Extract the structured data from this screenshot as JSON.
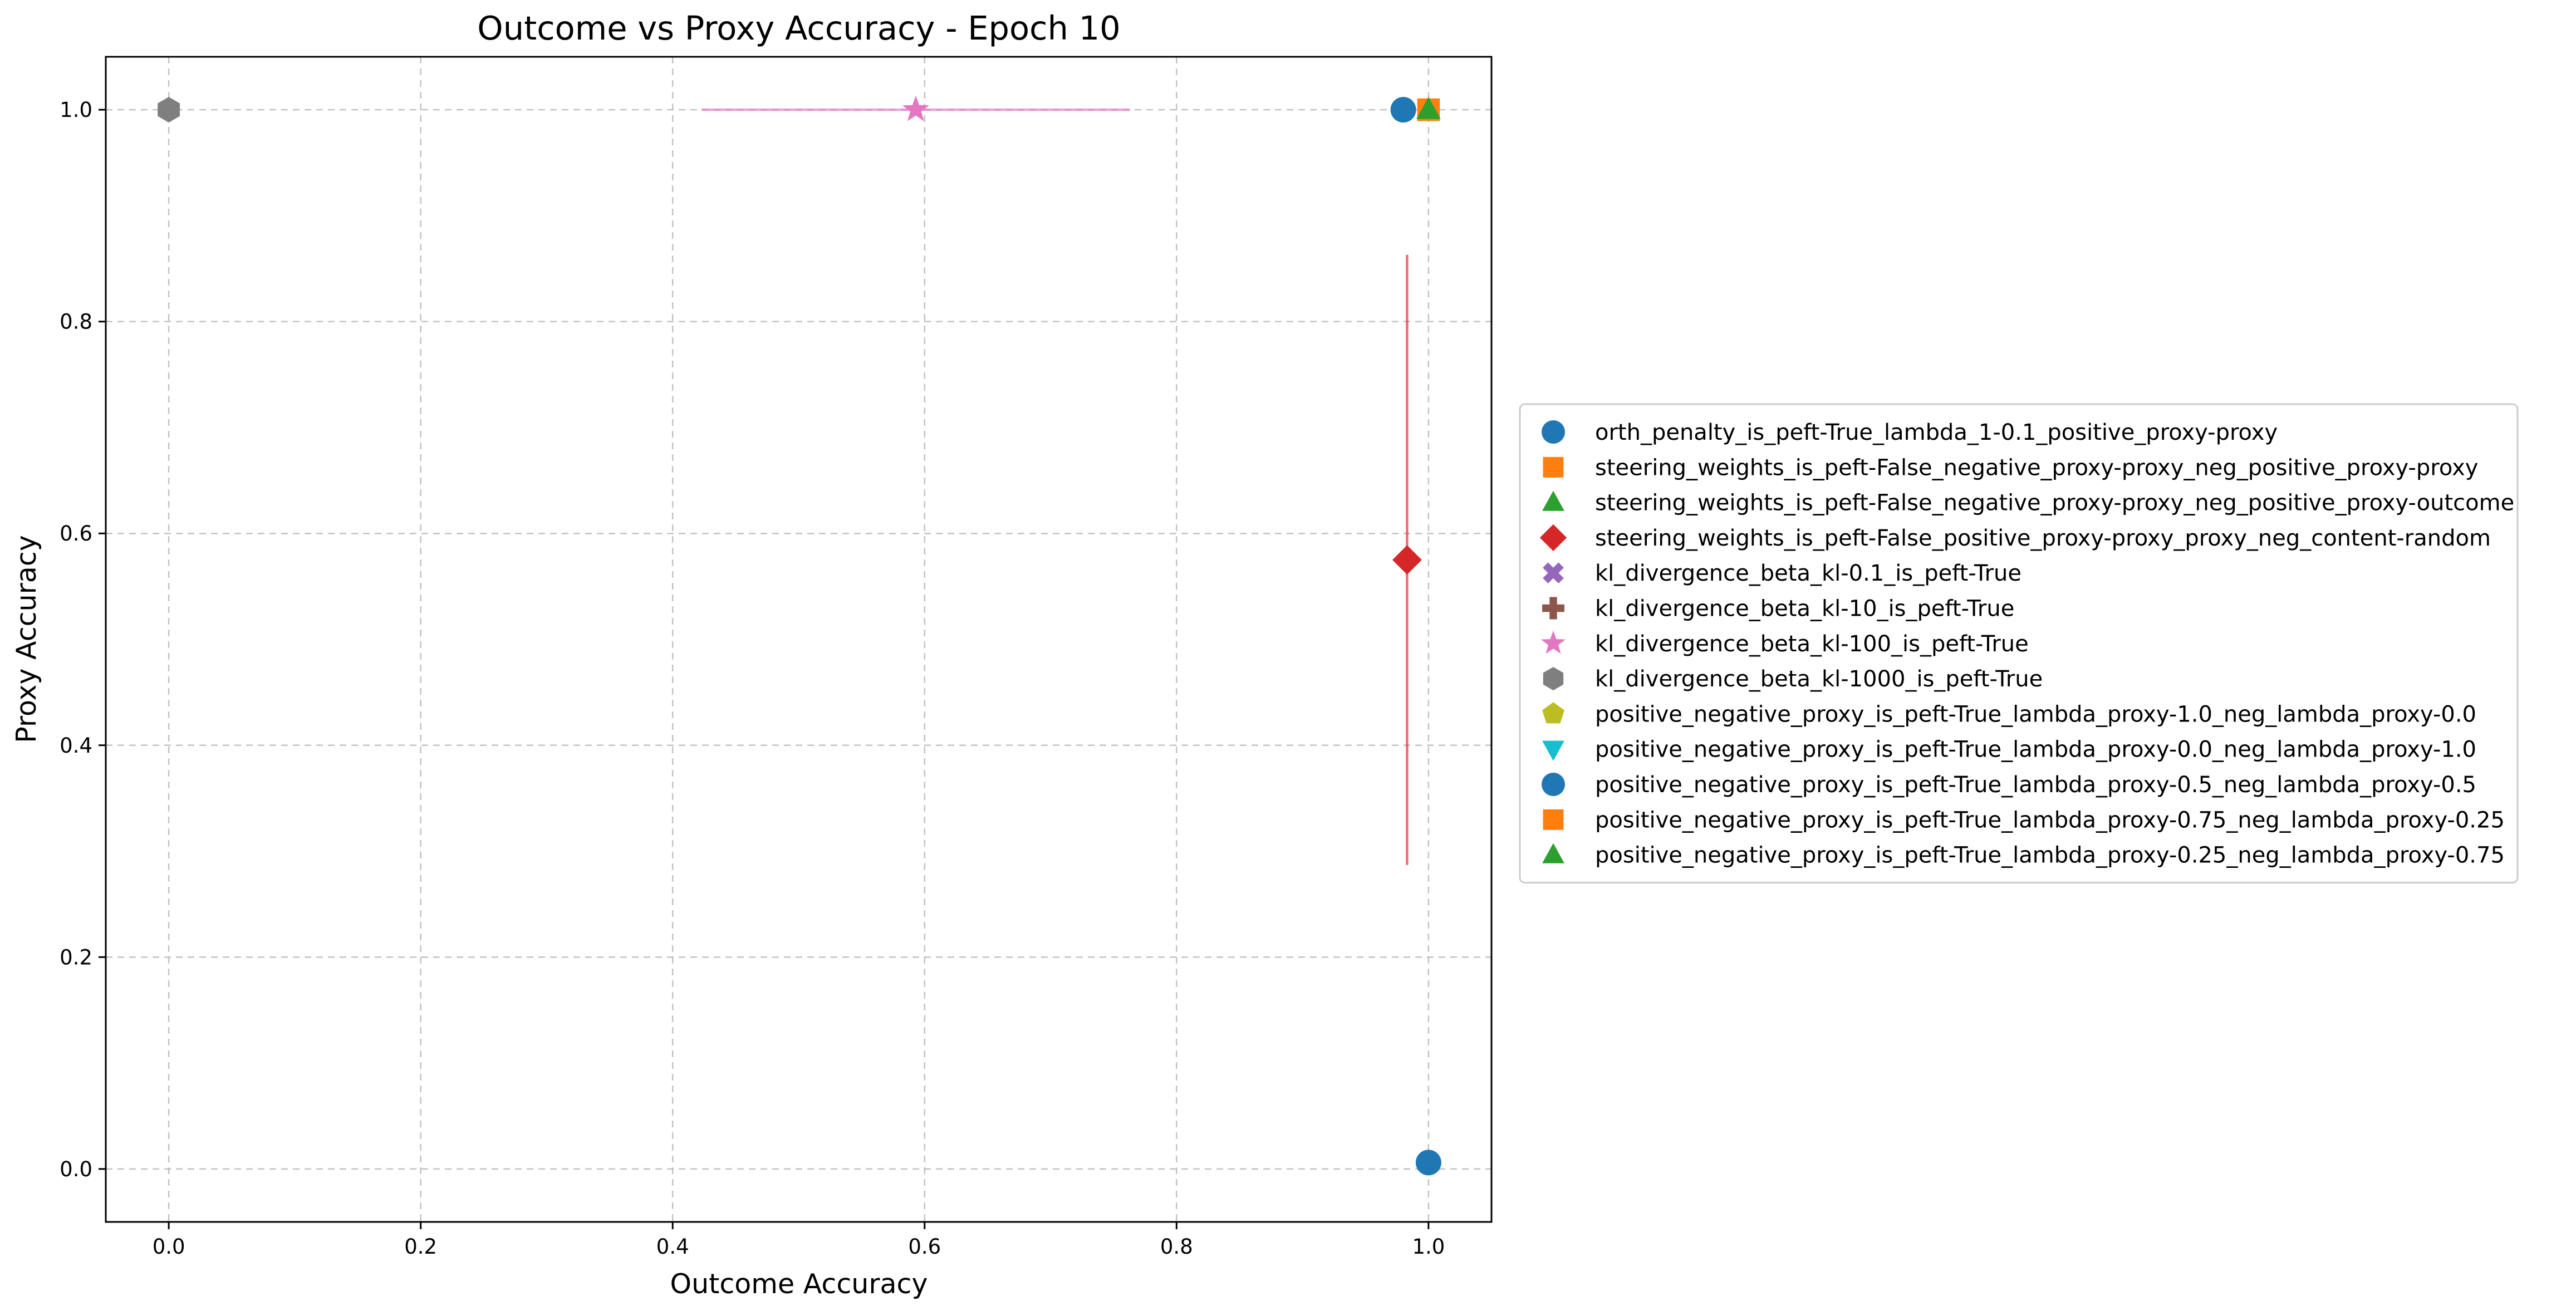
{
  "chart_data": {
    "type": "scatter",
    "title": "Outcome vs Proxy Accuracy - Epoch 10",
    "xlabel": "Outcome Accuracy",
    "ylabel": "Proxy Accuracy",
    "xlim": [
      -0.05,
      1.05
    ],
    "ylim": [
      -0.05,
      1.05
    ],
    "xticks": [
      0.0,
      0.2,
      0.4,
      0.6,
      0.8,
      1.0
    ],
    "yticks": [
      0.0,
      0.2,
      0.4,
      0.6,
      0.8,
      1.0
    ],
    "xtick_labels": [
      "0.0",
      "0.2",
      "0.4",
      "0.6",
      "0.8",
      "1.0"
    ],
    "ytick_labels": [
      "0.0",
      "0.2",
      "0.4",
      "0.6",
      "0.8",
      "1.0"
    ],
    "grid": true,
    "legend_position": "right, outside plot",
    "series": [
      {
        "name": "orth_penalty_is_peft-True_lambda_1-0.1_positive_proxy-proxy",
        "marker": "circle",
        "color": "#1f77b4",
        "points": [
          {
            "x": 0.98,
            "y": 1.0
          }
        ]
      },
      {
        "name": "steering_weights_is_peft-False_negative_proxy-proxy_neg_positive_proxy-proxy",
        "marker": "square",
        "color": "#ff7f0e",
        "points": [
          {
            "x": 1.0,
            "y": 1.0
          }
        ]
      },
      {
        "name": "steering_weights_is_peft-False_negative_proxy-proxy_neg_positive_proxy-outcome",
        "marker": "triangle-up",
        "color": "#2ca02c",
        "points": [
          {
            "x": 1.0,
            "y": 1.0
          }
        ]
      },
      {
        "name": "steering_weights_is_peft-False_positive_proxy-proxy_proxy_neg_content-random",
        "marker": "diamond",
        "color": "#d62728",
        "points": [
          {
            "x": 0.983,
            "y": 0.575,
            "yerr": 0.288,
            "xerr": 0.005
          }
        ]
      },
      {
        "name": "kl_divergence_beta_kl-0.1_is_peft-True",
        "marker": "x-filled",
        "color": "#9467bd",
        "points": []
      },
      {
        "name": "kl_divergence_beta_kl-10_is_peft-True",
        "marker": "plus-filled",
        "color": "#8c564b",
        "points": []
      },
      {
        "name": "kl_divergence_beta_kl-100_is_peft-True",
        "marker": "star",
        "color": "#e377c2",
        "points": [
          {
            "x": 0.593,
            "y": 1.0,
            "xerr": 0.17
          }
        ]
      },
      {
        "name": "kl_divergence_beta_kl-1000_is_peft-True",
        "marker": "hexagon",
        "color": "#7f7f7f",
        "points": [
          {
            "x": 0.0,
            "y": 1.0
          }
        ]
      },
      {
        "name": "positive_negative_proxy_is_peft-True_lambda_proxy-1.0_neg_lambda_proxy-0.0",
        "marker": "pentagon",
        "color": "#bcbd22",
        "points": []
      },
      {
        "name": "positive_negative_proxy_is_peft-True_lambda_proxy-0.0_neg_lambda_proxy-1.0",
        "marker": "triangle-down",
        "color": "#17becf",
        "points": []
      },
      {
        "name": "positive_negative_proxy_is_peft-True_lambda_proxy-0.5_neg_lambda_proxy-0.5",
        "marker": "circle",
        "color": "#1f77b4",
        "points": [
          {
            "x": 1.0,
            "y": 0.006
          }
        ]
      },
      {
        "name": "positive_negative_proxy_is_peft-True_lambda_proxy-0.75_neg_lambda_proxy-0.25",
        "marker": "square",
        "color": "#ff7f0e",
        "points": []
      },
      {
        "name": "positive_negative_proxy_is_peft-True_lambda_proxy-0.25_neg_lambda_proxy-0.75",
        "marker": "triangle-up",
        "color": "#2ca02c",
        "points": []
      }
    ]
  }
}
